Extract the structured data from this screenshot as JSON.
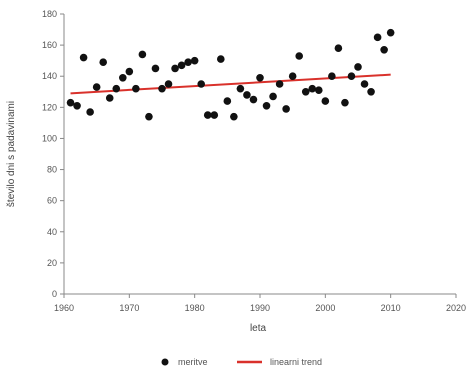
{
  "chart_data": {
    "type": "scatter",
    "title": "",
    "xlabel": "leta",
    "ylabel": "število dni s padavinami",
    "xlim": [
      1960,
      2020
    ],
    "ylim": [
      0,
      180
    ],
    "x_ticks": [
      "1960",
      "1970",
      "1980",
      "1990",
      "2000",
      "2010",
      "2020"
    ],
    "y_ticks": [
      "0",
      "20",
      "40",
      "60",
      "80",
      "100",
      "120",
      "140",
      "160",
      "180"
    ],
    "grid": false,
    "legend_position": "bottom",
    "series": [
      {
        "name": "meritve",
        "type": "scatter",
        "color": "#111111",
        "x": [
          1961,
          1962,
          1963,
          1964,
          1965,
          1966,
          1967,
          1968,
          1969,
          1970,
          1971,
          1972,
          1973,
          1974,
          1975,
          1976,
          1977,
          1978,
          1979,
          1980,
          1981,
          1982,
          1983,
          1984,
          1985,
          1986,
          1987,
          1988,
          1989,
          1990,
          1991,
          1992,
          1993,
          1994,
          1995,
          1996,
          1997,
          1998,
          1999,
          2000,
          2001,
          2002,
          2003,
          2004,
          2005,
          2006,
          2007,
          2008,
          2009,
          2010
        ],
        "y": [
          123,
          121,
          152,
          117,
          133,
          149,
          126,
          132,
          139,
          143,
          132,
          154,
          114,
          145,
          132,
          135,
          145,
          147,
          149,
          150,
          135,
          115,
          115,
          151,
          124,
          114,
          132,
          128,
          125,
          139,
          121,
          127,
          135,
          119,
          140,
          153,
          130,
          132,
          131,
          124,
          140,
          158,
          123,
          140,
          146,
          135,
          130,
          165,
          157,
          168
        ]
      },
      {
        "name": "linearni trend",
        "type": "line",
        "color": "#d9312b",
        "x": [
          1961,
          2010
        ],
        "y": [
          129,
          141
        ]
      }
    ]
  }
}
